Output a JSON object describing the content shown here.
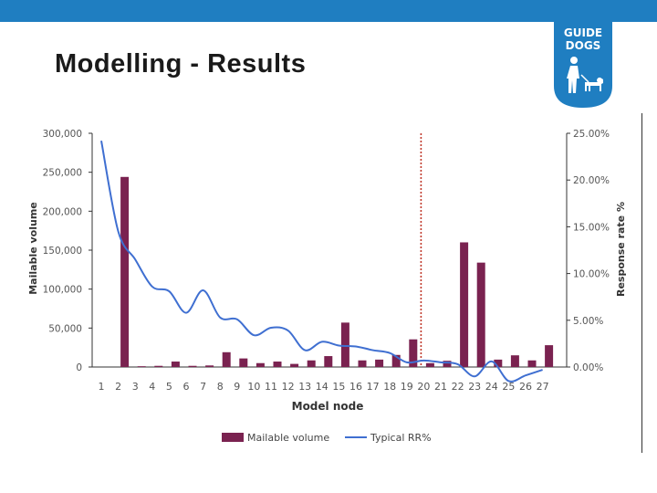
{
  "slide": {
    "title": "Modelling - Results",
    "logo_text_line1": "GUIDE",
    "logo_text_line2": "DOGS"
  },
  "colors": {
    "top_bar": "#1f7ec1",
    "logo_bg": "#1f7ec1",
    "bar": "#7a2250",
    "line": "#3f6fd1",
    "marker": "#c0392b"
  },
  "chart_data": {
    "type": "bar+line",
    "xlabel": "Model node",
    "ylabel_left": "Mailable volume",
    "ylabel_right": "Response rate %",
    "categories": [
      "1",
      "2",
      "3",
      "4",
      "5",
      "6",
      "7",
      "8",
      "9",
      "10",
      "11",
      "12",
      "13",
      "14",
      "15",
      "16",
      "17",
      "18",
      "19",
      "20",
      "21",
      "22",
      "23",
      "24",
      "25",
      "26",
      "27"
    ],
    "ylim_left": [
      0,
      300000
    ],
    "yticks_left": [
      "0",
      "50,000",
      "100,000",
      "150,000",
      "200,000",
      "250,000",
      "300,000"
    ],
    "ylim_right": [
      0,
      25
    ],
    "yticks_right": [
      "0.00%",
      "5.00%",
      "10.00%",
      "15.00%",
      "20.00%",
      "25.00%"
    ],
    "series": [
      {
        "name": "Mailable volume",
        "type": "bar",
        "axis": "left",
        "values": [
          0,
          244000,
          1000,
          1500,
          7000,
          1500,
          2000,
          19000,
          11000,
          5000,
          7000,
          4000,
          8500,
          14000,
          57000,
          8500,
          9500,
          15500,
          35500,
          5000,
          8000,
          160000,
          134000,
          9500,
          15000,
          8500,
          28000
        ]
      },
      {
        "name": "Typical RR%",
        "type": "line",
        "axis": "right",
        "values": [
          24.2,
          14.5,
          11.5,
          8.6,
          8.1,
          5.8,
          8.2,
          5.3,
          5.1,
          3.4,
          4.2,
          3.9,
          1.8,
          2.7,
          2.3,
          2.2,
          1.8,
          1.5,
          0.5,
          0.7,
          0.5,
          0.3,
          -1.0,
          0.6,
          -1.5,
          -0.9,
          -0.3
        ]
      }
    ],
    "reference_line_at": "20",
    "legend": [
      "Mailable volume",
      "Typical RR%"
    ],
    "legend_position": "bottom"
  }
}
